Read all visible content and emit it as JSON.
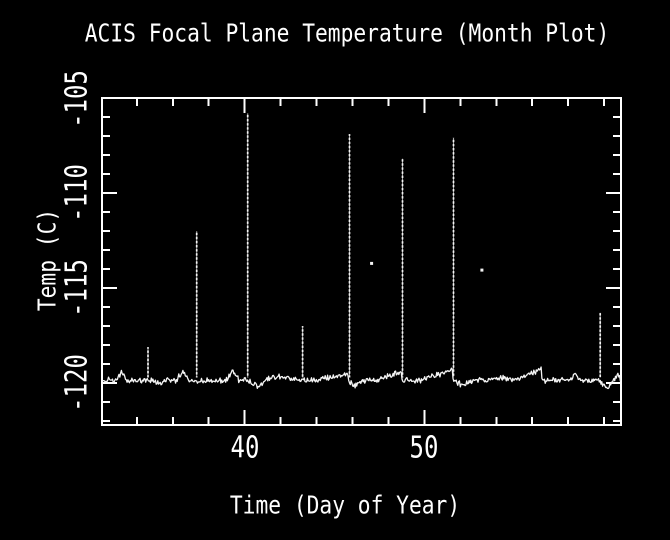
{
  "window": {
    "background": "#000000",
    "foreground": "#ffffff"
  },
  "chart_data": {
    "type": "line",
    "title": "ACIS Focal Plane Temperature (Month Plot)",
    "xlabel": "Time (Day of Year)",
    "ylabel": "Temp (C)",
    "x_range": [
      32.06,
      60.94
    ],
    "y_range": [
      -122.2,
      -105
    ],
    "x_major_ticks": [
      {
        "value": 40,
        "label": "40"
      },
      {
        "value": 50,
        "label": "50"
      }
    ],
    "x_minor_step": 2,
    "y_major_ticks": [
      {
        "value": -105,
        "label": "-105"
      },
      {
        "value": -110,
        "label": "-110"
      },
      {
        "value": -115,
        "label": "-115"
      },
      {
        "value": -120,
        "label": "-120"
      }
    ],
    "y_minor_step": 1,
    "grid": false,
    "legend": "none",
    "baseline_temp": -119.85,
    "noise_amp": 0.09,
    "spikes": [
      {
        "day": 34.62,
        "peak": -118.1
      },
      {
        "day": 37.33,
        "peak": -112.0
      },
      {
        "day": 40.17,
        "peak": -105.8
      },
      {
        "day": 43.22,
        "peak": -117.0
      },
      {
        "day": 45.83,
        "peak": -106.9
      },
      {
        "day": 48.78,
        "peak": -108.2
      },
      {
        "day": 51.62,
        "peak": -107.1
      },
      {
        "day": 59.78,
        "peak": -116.3
      }
    ],
    "isolated_points": [
      {
        "day": 47.06,
        "temp": -113.7
      },
      {
        "day": 53.2,
        "temp": -114.05
      }
    ],
    "baseline_features": [
      {
        "type": "bump",
        "day": 33.15,
        "amp": 0.45,
        "width": 0.3
      },
      {
        "type": "bump",
        "day": 35.3,
        "amp": -0.15,
        "width": 0.4
      },
      {
        "type": "bump",
        "day": 36.55,
        "amp": 0.5,
        "width": 0.35
      },
      {
        "type": "bump",
        "day": 39.35,
        "amp": 0.5,
        "width": 0.35
      },
      {
        "type": "bump",
        "day": 40.7,
        "amp": -0.3,
        "width": 0.5
      },
      {
        "type": "bump",
        "day": 41.9,
        "amp": 0.2,
        "width": 0.9
      },
      {
        "type": "ramp",
        "from": 43.9,
        "to": 45.78,
        "amp": 0.35
      },
      {
        "type": "bump",
        "day": 46.15,
        "amp": -0.25,
        "width": 0.4
      },
      {
        "type": "ramp",
        "from": 47.3,
        "to": 48.72,
        "amp": 0.45
      },
      {
        "type": "ramp",
        "from": 49.7,
        "to": 51.55,
        "amp": 0.5
      },
      {
        "type": "bump",
        "day": 52.15,
        "amp": -0.3,
        "width": 0.5
      },
      {
        "type": "bump",
        "day": 54.1,
        "amp": 0.2,
        "width": 0.6
      },
      {
        "type": "ramp",
        "from": 55.2,
        "to": 56.5,
        "amp": 0.6
      },
      {
        "type": "bump",
        "day": 58.4,
        "amp": 0.25,
        "width": 0.5
      },
      {
        "type": "bump",
        "day": 60.15,
        "amp": -0.45,
        "width": 0.35
      },
      {
        "type": "bump",
        "day": 60.75,
        "amp": 0.3,
        "width": 0.25
      }
    ],
    "axis_color": "#ffffff",
    "trace_color": "#f4f4f4",
    "background": "#000000"
  }
}
